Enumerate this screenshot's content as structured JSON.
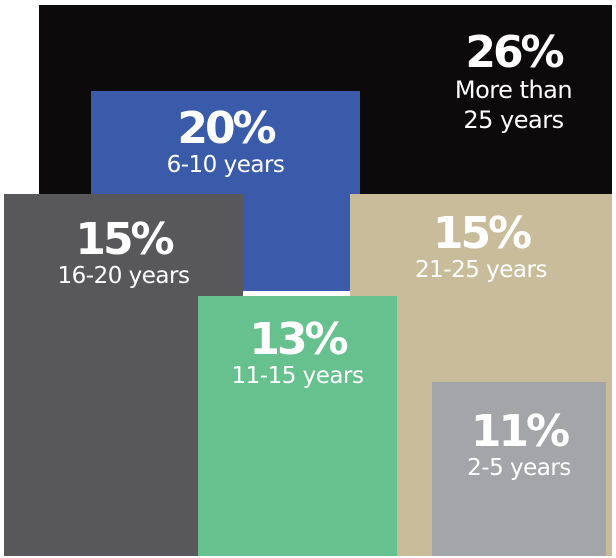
{
  "colors": {
    "background": "#ffffff",
    "text": "#ffffff"
  },
  "chart_data": {
    "type": "table",
    "title": "",
    "categories": [
      "More than 25 years",
      "6-10 years",
      "16-20 years",
      "21-25 years",
      "11-15 years",
      "2-5 years"
    ],
    "values": [
      26,
      20,
      15,
      15,
      13,
      11
    ],
    "unit": "%",
    "items": [
      {
        "key": "gt25",
        "percent_label": "26%",
        "value": 26,
        "label": "More than\n25 years",
        "color": "#0c0a0a"
      },
      {
        "key": "y6_10",
        "percent_label": "20%",
        "value": 20,
        "label": "6-10 years",
        "color": "#3a5ba9"
      },
      {
        "key": "y16_20",
        "percent_label": "15%",
        "value": 15,
        "label": "16-20 years",
        "color": "#58585a"
      },
      {
        "key": "y21_25",
        "percent_label": "15%",
        "value": 15,
        "label": "21-25 years",
        "color": "#c8bc9a"
      },
      {
        "key": "y11_15",
        "percent_label": "13%",
        "value": 13,
        "label": "11-15 years",
        "color": "#66c18e"
      },
      {
        "key": "y2_5",
        "percent_label": "11%",
        "value": 11,
        "label": "2-5 years",
        "color": "#a4a5a9"
      }
    ]
  }
}
